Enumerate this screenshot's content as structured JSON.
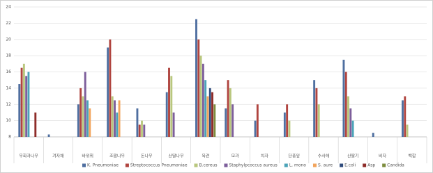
{
  "chart_data": {
    "type": "bar",
    "categories": [
      "무화과나무",
      "겨자채",
      "바위취",
      "조팝나무",
      "돈나무",
      "산딸나무",
      "목련",
      "모과",
      "치자",
      "단풍잎",
      "수사해",
      "산딸기",
      "비자",
      "백합"
    ],
    "series": [
      {
        "name": "K. Pneumoniae",
        "color": "#4f6fa0",
        "values": [
          14.5,
          8.3,
          12,
          19,
          11.5,
          13.5,
          22.5,
          11.5,
          10,
          11,
          15,
          17.5,
          8.5,
          12.5
        ]
      },
      {
        "name": "Streptococcus Pneumoniae",
        "color": "#b0443f",
        "values": [
          16.5,
          8,
          14,
          20,
          9.5,
          16.5,
          20,
          15,
          12,
          12,
          14,
          16,
          8,
          13
        ]
      },
      {
        "name": "B.cereus",
        "color": "#b9c77e",
        "values": [
          17,
          8,
          13,
          13,
          10,
          15.5,
          18,
          14,
          8,
          10,
          12,
          13,
          8,
          9.5
        ]
      },
      {
        "name": "Staphylpcoccus aureus",
        "color": "#7d5e9b",
        "values": [
          15.5,
          8,
          16,
          12.5,
          9.5,
          11,
          17,
          12,
          8,
          8,
          8,
          11.5,
          8,
          8
        ]
      },
      {
        "name": "L. mono",
        "color": "#4ba3b8",
        "values": [
          16,
          8,
          12.5,
          11,
          8,
          8,
          15,
          8,
          8,
          8,
          8,
          10,
          8,
          8
        ]
      },
      {
        "name": "S. aure",
        "color": "#f2a45c",
        "values": [
          8,
          8,
          11.5,
          12.5,
          8,
          8,
          13,
          8,
          8,
          8,
          8,
          8,
          8,
          8
        ]
      },
      {
        "name": "E.coli",
        "color": "#2f4b7c",
        "values": [
          8,
          8,
          8,
          8,
          8,
          8,
          14,
          8,
          8,
          8,
          8,
          8,
          8,
          8
        ]
      },
      {
        "name": "Asp",
        "color": "#8e2c29",
        "values": [
          11,
          8,
          8,
          8,
          8,
          8,
          13.5,
          8,
          8,
          8,
          8,
          8,
          8,
          8
        ]
      },
      {
        "name": "Candida",
        "color": "#7d8c3e",
        "values": [
          8,
          8,
          8,
          8,
          8,
          8,
          12,
          8,
          8,
          8,
          8,
          8,
          8,
          8
        ]
      }
    ],
    "ylim": [
      8,
      24
    ],
    "yticks": [
      8,
      10,
      12,
      14,
      16,
      18,
      20,
      22,
      24
    ],
    "grid": true,
    "legend": "bottom"
  }
}
